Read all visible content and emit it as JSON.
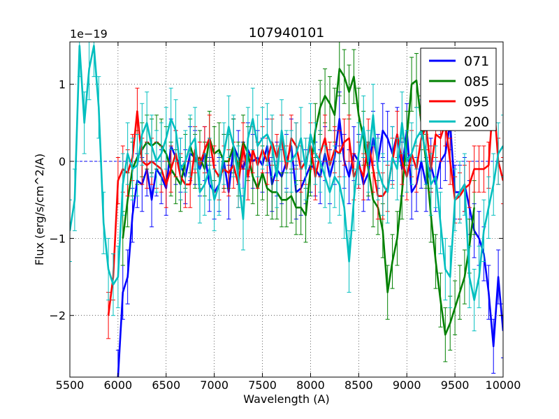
{
  "chart_data": {
    "type": "line",
    "title": "107940101",
    "xlabel": "Wavelength (A)",
    "ylabel": "Flux (erg/s/cm^2/A)",
    "offset_text": "1e−19",
    "xlim": [
      5500,
      10000
    ],
    "ylim": [
      -2.8,
      1.55
    ],
    "grid": true,
    "legend_position": "upper right",
    "xticks": [
      5500,
      6000,
      6500,
      7000,
      7500,
      8000,
      8500,
      9000,
      9500,
      10000
    ],
    "xtick_labels": [
      "5500",
      "6000",
      "6500",
      "7000",
      "7500",
      "8000",
      "8500",
      "9000",
      "9500",
      "10000"
    ],
    "yticks": [
      -2,
      -1,
      0,
      1
    ],
    "ytick_labels": [
      "−2",
      "−1",
      "0",
      "1"
    ],
    "zero_line": {
      "value": 0,
      "style": "dashed",
      "color": "#0000ff"
    },
    "series": [
      {
        "name": "071",
        "color": "#0000ff",
        "x": [
          6000,
          6050,
          6100,
          6150,
          6200,
          6250,
          6300,
          6350,
          6400,
          6450,
          6500,
          6550,
          6600,
          6650,
          6700,
          6750,
          6800,
          6850,
          6900,
          6950,
          7000,
          7050,
          7100,
          7150,
          7200,
          7250,
          7300,
          7350,
          7400,
          7450,
          7500,
          7550,
          7600,
          7650,
          7700,
          7750,
          7800,
          7850,
          7900,
          7950,
          8000,
          8050,
          8100,
          8150,
          8200,
          8250,
          8300,
          8350,
          8400,
          8450,
          8500,
          8550,
          8600,
          8650,
          8700,
          8750,
          8800,
          8850,
          8900,
          8950,
          9000,
          9050,
          9100,
          9150,
          9200,
          9250,
          9300,
          9350,
          9400,
          9450,
          9500,
          9550,
          9600,
          9650,
          9700,
          9750,
          9800,
          9850,
          9900,
          9950,
          10000
        ],
        "y": [
          -2.8,
          -1.7,
          -1.5,
          -0.7,
          -0.25,
          -0.3,
          -0.1,
          -0.5,
          -0.1,
          -0.2,
          -0.35,
          0.2,
          0.05,
          -0.05,
          -0.2,
          0.1,
          0.05,
          -0.1,
          0.1,
          -0.3,
          -0.4,
          -0.3,
          0.0,
          -0.4,
          0.2,
          0.05,
          -0.1,
          0.15,
          0.0,
          0.05,
          -0.05,
          0.2,
          -0.3,
          -0.1,
          -0.2,
          0.0,
          0.2,
          -0.4,
          -0.35,
          -0.2,
          -0.05,
          -0.1,
          -0.2,
          0.1,
          -0.2,
          0.05,
          0.55,
          0.0,
          -0.2,
          0.1,
          0.0,
          -0.3,
          -0.15,
          0.3,
          0.0,
          0.4,
          0.3,
          0.1,
          0.35,
          -0.1,
          0.4,
          -0.4,
          -0.3,
          0.0,
          -0.3,
          -0.05,
          -0.3,
          0.0,
          0.1,
          0.5,
          -0.4,
          -0.4,
          -0.3,
          -0.6,
          -0.9,
          -1.0,
          -1.2,
          -1.7,
          -2.4,
          -1.5,
          -2.2
        ],
        "err": 0.35
      },
      {
        "name": "085",
        "color": "#008000",
        "x": [
          6050,
          6100,
          6150,
          6200,
          6250,
          6300,
          6350,
          6400,
          6450,
          6500,
          6550,
          6600,
          6650,
          6700,
          6750,
          6800,
          6850,
          6900,
          6950,
          7000,
          7050,
          7100,
          7150,
          7200,
          7250,
          7300,
          7350,
          7400,
          7450,
          7500,
          7550,
          7600,
          7650,
          7700,
          7750,
          7800,
          7850,
          7900,
          7950,
          8000,
          8050,
          8100,
          8150,
          8200,
          8250,
          8300,
          8350,
          8400,
          8450,
          8500,
          8550,
          8600,
          8650,
          8700,
          8750,
          8800,
          8850,
          8900,
          8950,
          9000,
          9050,
          9100,
          9150,
          9200,
          9250,
          9300,
          9350,
          9400,
          9450,
          9500,
          9550,
          9600,
          9650,
          9700
        ],
        "y": [
          -1.0,
          -0.5,
          -0.1,
          0.05,
          0.15,
          0.25,
          0.2,
          0.25,
          0.2,
          0.1,
          -0.1,
          -0.2,
          -0.3,
          0.0,
          0.2,
          0.0,
          0.05,
          -0.1,
          0.3,
          0.1,
          0.15,
          0.0,
          0.0,
          0.2,
          -0.1,
          0.25,
          0.1,
          -0.2,
          -0.35,
          -0.15,
          -0.35,
          -0.4,
          -0.4,
          -0.5,
          -0.5,
          -0.45,
          -0.6,
          -0.6,
          -0.7,
          -0.1,
          0.4,
          0.7,
          0.85,
          0.75,
          0.6,
          1.2,
          1.1,
          0.9,
          1.1,
          0.6,
          0.3,
          -0.1,
          -0.5,
          -0.6,
          -0.9,
          -1.7,
          -1.3,
          -1.0,
          -0.4,
          0.3,
          1.0,
          1.05,
          0.5,
          0.0,
          -0.7,
          -1.3,
          -1.8,
          -2.25,
          -2.1,
          -1.9,
          -1.7,
          -1.5,
          -1.1,
          -0.6
        ],
        "err": 0.35
      },
      {
        "name": "095",
        "color": "#ff0000",
        "x": [
          5900,
          5950,
          6000,
          6050,
          6100,
          6150,
          6200,
          6250,
          6300,
          6350,
          6400,
          6450,
          6500,
          6550,
          6600,
          6650,
          6700,
          6750,
          6800,
          6850,
          6900,
          6950,
          7000,
          7050,
          7100,
          7150,
          7200,
          7250,
          7300,
          7350,
          7400,
          7450,
          7500,
          7550,
          7600,
          7650,
          7700,
          7750,
          7800,
          7850,
          7900,
          7950,
          8000,
          8050,
          8100,
          8150,
          8200,
          8250,
          8300,
          8350,
          8400,
          8450,
          8500,
          8550,
          8600,
          8650,
          8700,
          8750,
          8800,
          8850,
          8900,
          8950,
          9000,
          9050,
          9100,
          9150,
          9200,
          9250,
          9300,
          9350,
          9400,
          9450,
          9500,
          9550,
          9600,
          9650,
          9700,
          9750,
          9800,
          9850,
          9900,
          9950,
          10000
        ],
        "y": [
          -2.0,
          -1.5,
          -0.25,
          -0.1,
          -0.15,
          0.05,
          0.65,
          0.0,
          -0.05,
          0.0,
          -0.05,
          -0.1,
          -0.3,
          -0.1,
          0.1,
          -0.2,
          -0.3,
          -0.3,
          0.15,
          -0.05,
          0.15,
          0.3,
          -0.1,
          -0.2,
          -0.1,
          -0.15,
          -0.05,
          -0.3,
          0.2,
          -0.2,
          0.15,
          -0.05,
          0.15,
          0.0,
          0.25,
          0.05,
          0.3,
          -0.1,
          0.3,
          0.2,
          -0.1,
          0.0,
          0.2,
          -0.2,
          0.1,
          0.3,
          -0.05,
          0.15,
          0.1,
          0.25,
          0.3,
          -0.2,
          -0.05,
          -0.2,
          0.25,
          -0.1,
          -0.45,
          -0.45,
          -0.35,
          0.0,
          0.35,
          0.0,
          -0.2,
          0.1,
          -0.1,
          0.3,
          0.45,
          -0.1,
          0.35,
          0.3,
          0.5,
          0.0,
          -0.5,
          -0.45,
          -0.35,
          -0.3,
          -0.1,
          -0.1,
          -0.1,
          -0.05,
          0.85,
          0.0,
          -0.25
        ],
        "err": 0.3
      },
      {
        "name": "200",
        "color": "#00bfbf",
        "x": [
          5500,
          5550,
          5600,
          5650,
          5700,
          5750,
          5800,
          5850,
          5900,
          5950,
          6000,
          6050,
          6100,
          6150,
          6200,
          6250,
          6300,
          6350,
          6400,
          6450,
          6500,
          6550,
          6600,
          6650,
          6700,
          6750,
          6800,
          6850,
          6900,
          6950,
          7000,
          7050,
          7100,
          7150,
          7200,
          7250,
          7300,
          7350,
          7400,
          7450,
          7500,
          7550,
          7600,
          7650,
          7700,
          7750,
          7800,
          7850,
          7900,
          7950,
          8000,
          8050,
          8100,
          8150,
          8200,
          8250,
          8300,
          8350,
          8400,
          8450,
          8500,
          8550,
          8600,
          8650,
          8700,
          8750,
          8800,
          8850,
          8900,
          8950,
          9000,
          9050,
          9100,
          9150,
          9200,
          9250,
          9300,
          9350,
          9400,
          9450,
          9500,
          9550,
          9600,
          9650,
          9700,
          9750,
          9800,
          9850,
          9900,
          9950,
          10000
        ],
        "y": [
          -0.9,
          -0.5,
          1.5,
          0.5,
          1.2,
          1.5,
          0.7,
          -0.8,
          -1.4,
          -1.6,
          -1.5,
          -0.3,
          0.1,
          -0.1,
          -0.05,
          0.35,
          0.5,
          0.2,
          0.0,
          0.1,
          0.3,
          0.55,
          0.4,
          -0.1,
          0.0,
          0.2,
          0.3,
          -0.4,
          -0.3,
          -0.1,
          -0.5,
          -0.3,
          0.1,
          0.45,
          0.2,
          -0.2,
          -0.75,
          0.3,
          0.55,
          0.2,
          0.3,
          0.35,
          0.2,
          -0.2,
          0.4,
          0.0,
          0.0,
          0.1,
          0.3,
          -0.1,
          0.35,
          0.1,
          0.0,
          -0.2,
          -0.4,
          -0.2,
          -0.3,
          -0.6,
          -1.3,
          -0.5,
          0.1,
          0.45,
          0.0,
          0.6,
          -0.1,
          -0.3,
          -0.4,
          0.05,
          -0.1,
          0.5,
          0.0,
          0.1,
          0.3,
          0.4,
          0.1,
          -0.3,
          -0.2,
          -0.8,
          -1.4,
          -1.5,
          -0.5,
          -0.4,
          -0.3,
          -1.5,
          -1.8,
          -1.5,
          -0.9,
          -0.6,
          -0.3,
          0.1,
          0.2
        ],
        "err": 0.4
      }
    ]
  }
}
